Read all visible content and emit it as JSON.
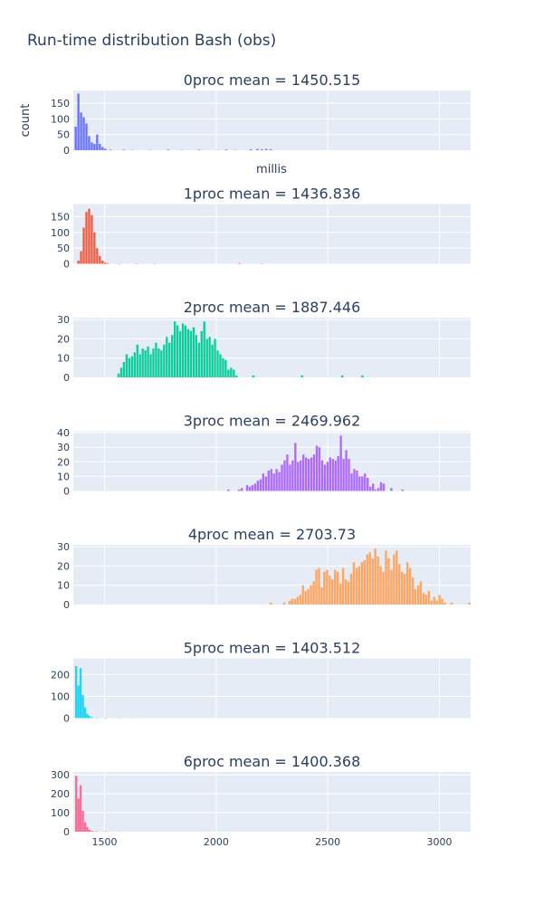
{
  "chart_data": {
    "type": "bar",
    "title": "Run-time distribution Bash (obs)",
    "xlabel": "millis",
    "ylabel": "count",
    "xlim": [
      1360,
      3140
    ],
    "x_ticks": [
      1500,
      2000,
      2500,
      3000
    ],
    "bin_width": 12,
    "grid": true,
    "subplots": [
      {
        "name": "0proc",
        "title": "0proc mean = 1450.515",
        "color": "#636efa",
        "ylim": [
          0,
          190
        ],
        "y_ticks": [
          0,
          50,
          100,
          150
        ],
        "bins": [
          [
            1366,
            75
          ],
          [
            1378,
            180
          ],
          [
            1390,
            120
          ],
          [
            1402,
            105
          ],
          [
            1414,
            85
          ],
          [
            1426,
            45
          ],
          [
            1438,
            25
          ],
          [
            1450,
            20
          ],
          [
            1462,
            50
          ],
          [
            1474,
            20
          ],
          [
            1486,
            10
          ],
          [
            1498,
            5
          ],
          [
            1522,
            2
          ],
          [
            1580,
            2
          ],
          [
            1620,
            1
          ],
          [
            1700,
            1
          ],
          [
            1780,
            2
          ],
          [
            1840,
            1
          ],
          [
            1920,
            2
          ],
          [
            2000,
            1
          ],
          [
            2040,
            2
          ],
          [
            2080,
            1
          ],
          [
            2150,
            3
          ],
          [
            2180,
            4
          ],
          [
            2200,
            3
          ],
          [
            2220,
            4
          ],
          [
            2240,
            3
          ]
        ]
      },
      {
        "name": "1proc",
        "title": "1proc mean = 1436.836",
        "color": "#ef553b",
        "ylim": [
          0,
          190
        ],
        "y_ticks": [
          0,
          50,
          100,
          150
        ],
        "bins": [
          [
            1378,
            10
          ],
          [
            1390,
            40
          ],
          [
            1402,
            115
          ],
          [
            1414,
            165
          ],
          [
            1426,
            175
          ],
          [
            1438,
            155
          ],
          [
            1450,
            100
          ],
          [
            1462,
            50
          ],
          [
            1474,
            25
          ],
          [
            1486,
            10
          ],
          [
            1498,
            4
          ],
          [
            1510,
            2
          ],
          [
            1560,
            1
          ],
          [
            1640,
            1
          ],
          [
            1720,
            1
          ],
          [
            2100,
            2
          ],
          [
            2200,
            1
          ]
        ]
      },
      {
        "name": "2proc",
        "title": "2proc mean = 1887.446",
        "color": "#00cc96",
        "ylim": [
          0,
          31
        ],
        "y_ticks": [
          0,
          10,
          20,
          30
        ],
        "bins": [
          [
            1558,
            2
          ],
          [
            1570,
            5
          ],
          [
            1582,
            8
          ],
          [
            1594,
            12
          ],
          [
            1606,
            10
          ],
          [
            1618,
            11
          ],
          [
            1630,
            13
          ],
          [
            1642,
            17
          ],
          [
            1654,
            12
          ],
          [
            1666,
            15
          ],
          [
            1678,
            14
          ],
          [
            1690,
            16
          ],
          [
            1702,
            12
          ],
          [
            1714,
            15
          ],
          [
            1726,
            18
          ],
          [
            1738,
            15
          ],
          [
            1750,
            14
          ],
          [
            1762,
            17
          ],
          [
            1774,
            21
          ],
          [
            1786,
            18
          ],
          [
            1798,
            22
          ],
          [
            1810,
            29
          ],
          [
            1822,
            27
          ],
          [
            1834,
            24
          ],
          [
            1846,
            28
          ],
          [
            1858,
            27
          ],
          [
            1870,
            25
          ],
          [
            1882,
            24
          ],
          [
            1894,
            26
          ],
          [
            1906,
            22
          ],
          [
            1918,
            18
          ],
          [
            1930,
            24
          ],
          [
            1942,
            29
          ],
          [
            1954,
            20
          ],
          [
            1966,
            21
          ],
          [
            1978,
            17
          ],
          [
            1990,
            20
          ],
          [
            2002,
            14
          ],
          [
            2014,
            12
          ],
          [
            2026,
            10
          ],
          [
            2038,
            9
          ],
          [
            2050,
            4
          ],
          [
            2062,
            5
          ],
          [
            2074,
            4
          ],
          [
            2086,
            1
          ],
          [
            2162,
            1
          ],
          [
            2380,
            1
          ],
          [
            2560,
            1
          ],
          [
            2650,
            1
          ]
        ]
      },
      {
        "name": "3proc",
        "title": "3proc mean = 2469.962",
        "color": "#ab63fa",
        "ylim": [
          0,
          41
        ],
        "y_ticks": [
          0,
          10,
          20,
          30,
          40
        ],
        "bins": [
          [
            2050,
            1
          ],
          [
            2098,
            1
          ],
          [
            2110,
            2
          ],
          [
            2134,
            4
          ],
          [
            2146,
            3
          ],
          [
            2158,
            4
          ],
          [
            2170,
            5
          ],
          [
            2182,
            7
          ],
          [
            2194,
            8
          ],
          [
            2206,
            12
          ],
          [
            2218,
            10
          ],
          [
            2230,
            14
          ],
          [
            2242,
            15
          ],
          [
            2254,
            12
          ],
          [
            2266,
            15
          ],
          [
            2278,
            13
          ],
          [
            2290,
            18
          ],
          [
            2302,
            21
          ],
          [
            2314,
            25
          ],
          [
            2326,
            18
          ],
          [
            2338,
            21
          ],
          [
            2350,
            33
          ],
          [
            2362,
            20
          ],
          [
            2374,
            21
          ],
          [
            2386,
            25
          ],
          [
            2398,
            23
          ],
          [
            2410,
            22
          ],
          [
            2422,
            23
          ],
          [
            2434,
            25
          ],
          [
            2446,
            31
          ],
          [
            2458,
            30
          ],
          [
            2470,
            21
          ],
          [
            2482,
            18
          ],
          [
            2494,
            20
          ],
          [
            2506,
            23
          ],
          [
            2518,
            22
          ],
          [
            2530,
            21
          ],
          [
            2542,
            24
          ],
          [
            2554,
            38
          ],
          [
            2566,
            22
          ],
          [
            2578,
            28
          ],
          [
            2590,
            22
          ],
          [
            2602,
            12
          ],
          [
            2614,
            15
          ],
          [
            2626,
            14
          ],
          [
            2638,
            10
          ],
          [
            2650,
            10
          ],
          [
            2662,
            12
          ],
          [
            2674,
            9
          ],
          [
            2686,
            3
          ],
          [
            2698,
            5
          ],
          [
            2710,
            1
          ],
          [
            2722,
            2
          ],
          [
            2734,
            6
          ],
          [
            2746,
            5
          ],
          [
            2780,
            2
          ],
          [
            2830,
            1
          ]
        ]
      },
      {
        "name": "4proc",
        "title": "4proc mean = 2703.73",
        "color": "#ffa15a",
        "ylim": [
          0,
          31
        ],
        "y_ticks": [
          0,
          10,
          20,
          30
        ],
        "bins": [
          [
            2240,
            1
          ],
          [
            2300,
            1
          ],
          [
            2324,
            2
          ],
          [
            2336,
            3
          ],
          [
            2348,
            3
          ],
          [
            2360,
            4
          ],
          [
            2372,
            5
          ],
          [
            2384,
            10
          ],
          [
            2396,
            7
          ],
          [
            2408,
            8
          ],
          [
            2420,
            10
          ],
          [
            2432,
            12
          ],
          [
            2444,
            18
          ],
          [
            2456,
            19
          ],
          [
            2468,
            9
          ],
          [
            2480,
            17
          ],
          [
            2492,
            18
          ],
          [
            2504,
            15
          ],
          [
            2516,
            13
          ],
          [
            2528,
            18
          ],
          [
            2540,
            17
          ],
          [
            2552,
            11
          ],
          [
            2564,
            19
          ],
          [
            2576,
            13
          ],
          [
            2588,
            12
          ],
          [
            2600,
            16
          ],
          [
            2612,
            22
          ],
          [
            2624,
            19
          ],
          [
            2636,
            20
          ],
          [
            2648,
            22
          ],
          [
            2660,
            23
          ],
          [
            2672,
            26
          ],
          [
            2684,
            27
          ],
          [
            2696,
            24
          ],
          [
            2708,
            29
          ],
          [
            2720,
            25
          ],
          [
            2732,
            20
          ],
          [
            2744,
            17
          ],
          [
            2756,
            28
          ],
          [
            2768,
            24
          ],
          [
            2780,
            18
          ],
          [
            2792,
            26
          ],
          [
            2804,
            28
          ],
          [
            2816,
            21
          ],
          [
            2828,
            17
          ],
          [
            2840,
            16
          ],
          [
            2852,
            22
          ],
          [
            2864,
            19
          ],
          [
            2876,
            14
          ],
          [
            2888,
            8
          ],
          [
            2900,
            10
          ],
          [
            2912,
            12
          ],
          [
            2924,
            6
          ],
          [
            2936,
            5
          ],
          [
            2948,
            7
          ],
          [
            2960,
            2
          ],
          [
            2972,
            4
          ],
          [
            2984,
            2
          ],
          [
            2996,
            5
          ],
          [
            3008,
            3
          ],
          [
            3020,
            1
          ],
          [
            3050,
            1
          ],
          [
            3130,
            1
          ]
        ]
      },
      {
        "name": "5proc",
        "title": "5proc mean = 1403.512",
        "color": "#19d3f3",
        "ylim": [
          0,
          275
        ],
        "y_ticks": [
          0,
          100,
          200
        ],
        "bins": [
          [
            1368,
            240
          ],
          [
            1378,
            150
          ],
          [
            1388,
            230
          ],
          [
            1398,
            105
          ],
          [
            1408,
            50
          ],
          [
            1418,
            20
          ],
          [
            1428,
            10
          ],
          [
            1440,
            4
          ],
          [
            1460,
            2
          ],
          [
            1500,
            2
          ],
          [
            1560,
            1
          ],
          [
            1620,
            1
          ]
        ]
      },
      {
        "name": "6proc",
        "title": "6proc mean = 1400.368",
        "color": "#ff6692",
        "ylim": [
          0,
          315
        ],
        "y_ticks": [
          0,
          100,
          200,
          300
        ],
        "bins": [
          [
            1368,
            295
          ],
          [
            1378,
            175
          ],
          [
            1388,
            245
          ],
          [
            1398,
            110
          ],
          [
            1408,
            50
          ],
          [
            1418,
            25
          ],
          [
            1428,
            10
          ],
          [
            1440,
            5
          ],
          [
            1460,
            2
          ],
          [
            1500,
            2
          ],
          [
            1560,
            1
          ]
        ]
      }
    ]
  }
}
